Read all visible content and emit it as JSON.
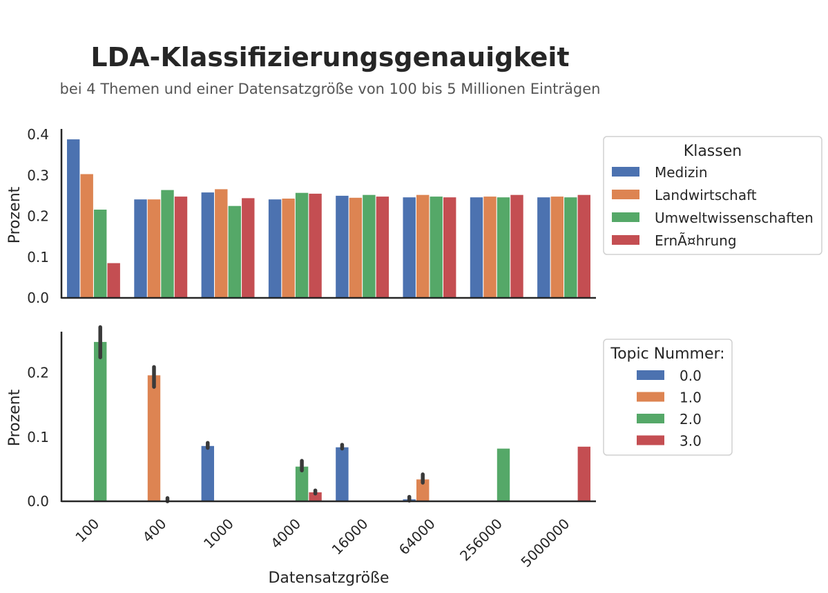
{
  "title": "LDA-Klassifizierungsgenauigkeit",
  "subtitle": "bei 4 Themen und einer Datensatzgröße von 100 bis 5 Millionen Einträgen",
  "colors": {
    "blue": "#4c72b0",
    "orange": "#dd8452",
    "green": "#55a868",
    "red": "#c44e52",
    "errorbar": "#3a3a3a"
  },
  "chart_data": [
    {
      "type": "bar",
      "categories": [
        "100",
        "400",
        "1000",
        "4000",
        "16000",
        "64000",
        "256000",
        "5000000"
      ],
      "ylabel": "Prozent",
      "xlabel": "",
      "ylim": [
        0,
        0.41
      ],
      "yticks": [
        "0.0",
        "0.1",
        "0.2",
        "0.3",
        "0.4"
      ],
      "grid": false,
      "legend": {
        "title": "Klassen",
        "position": "right"
      },
      "series": [
        {
          "name": "Medizin",
          "color": "#4c72b0",
          "values": [
            0.388,
            0.241,
            0.258,
            0.241,
            0.25,
            0.246,
            0.246,
            0.246
          ]
        },
        {
          "name": "Landwirtschaft",
          "color": "#dd8452",
          "values": [
            0.303,
            0.241,
            0.266,
            0.243,
            0.245,
            0.252,
            0.248,
            0.248
          ]
        },
        {
          "name": "Umweltwissenschaften",
          "color": "#55a868",
          "values": [
            0.216,
            0.264,
            0.225,
            0.257,
            0.252,
            0.248,
            0.246,
            0.246
          ]
        },
        {
          "name": "ErnÃ¤hrung",
          "color": "#c44e52",
          "values": [
            0.085,
            0.248,
            0.244,
            0.255,
            0.248,
            0.246,
            0.252,
            0.252
          ]
        }
      ]
    },
    {
      "type": "bar",
      "categories": [
        "100",
        "400",
        "1000",
        "4000",
        "16000",
        "64000",
        "256000",
        "5000000"
      ],
      "ylabel": "Prozent",
      "xlabel": "Datensatzgröße",
      "ylim": [
        0,
        0.28
      ],
      "yticks": [
        "0.0",
        "0.1",
        "0.2"
      ],
      "grid": false,
      "legend": {
        "title": "Topic Nummer:",
        "position": "right"
      },
      "series": [
        {
          "name": "0.0",
          "color": "#4c72b0",
          "values": [
            0,
            0,
            0.086,
            0,
            0.084,
            0.003,
            0,
            0
          ],
          "err": [
            null,
            null,
            [
              0.083,
              0.091
            ],
            null,
            [
              0.082,
              0.088
            ],
            [
              0.001,
              0.007
            ],
            null,
            null
          ]
        },
        {
          "name": "1.0",
          "color": "#dd8452",
          "values": [
            0,
            0.196,
            0,
            0,
            0,
            0.034,
            0,
            0
          ],
          "err": [
            null,
            [
              0.178,
              0.209
            ],
            null,
            null,
            null,
            [
              0.029,
              0.042
            ],
            null,
            null
          ]
        },
        {
          "name": "2.0",
          "color": "#55a868",
          "values": [
            0.248,
            0.001,
            0,
            0.054,
            0,
            0,
            0.082,
            0
          ],
          "err": [
            [
              0.224,
              0.271
            ],
            [
              0,
              0.005
            ],
            null,
            [
              0.048,
              0.063
            ],
            null,
            null,
            null,
            null
          ]
        },
        {
          "name": "3.0",
          "color": "#c44e52",
          "values": [
            0,
            0,
            0,
            0.014,
            0,
            0,
            0,
            0.085
          ],
          "err": [
            null,
            null,
            null,
            [
              0.012,
              0.017
            ],
            null,
            null,
            null,
            null
          ]
        }
      ]
    }
  ]
}
